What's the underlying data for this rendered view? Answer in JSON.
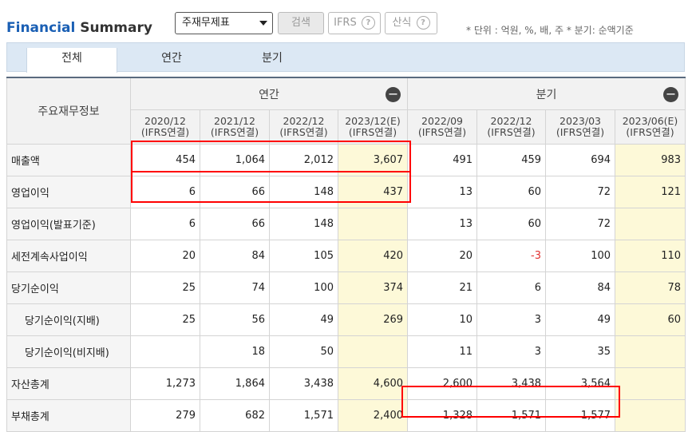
{
  "header": {
    "title_a": "Financial",
    "title_b": "Summary",
    "select_value": "주재무제표",
    "search_label": "검색",
    "ifrs_label": "IFRS",
    "calc_label": "산식",
    "help_glyph": "?",
    "unit_text": "* 단위 : 억원, %, 배, 주    * 분기: 순액기준"
  },
  "tabs": [
    "전체",
    "연간",
    "분기"
  ],
  "table": {
    "main_header": "주요재무정보",
    "annual_label": "연간",
    "quarter_label": "분기",
    "collapse_glyph": "−",
    "columns": [
      {
        "period": "2020/12",
        "basis": "(IFRS연결)"
      },
      {
        "period": "2021/12",
        "basis": "(IFRS연결)"
      },
      {
        "period": "2022/12",
        "basis": "(IFRS연결)"
      },
      {
        "period": "2023/12(E)",
        "basis": "(IFRS연결)"
      },
      {
        "period": "2022/09",
        "basis": "(IFRS연결)"
      },
      {
        "period": "2022/12",
        "basis": "(IFRS연결)"
      },
      {
        "period": "2023/03",
        "basis": "(IFRS연결)"
      },
      {
        "period": "2023/06(E)",
        "basis": "(IFRS연결)"
      }
    ],
    "rows": [
      {
        "label": "매출액",
        "values": [
          "454",
          "1,064",
          "2,012",
          "3,607",
          "491",
          "459",
          "694",
          "983"
        ]
      },
      {
        "label": "영업이익",
        "values": [
          "6",
          "66",
          "148",
          "437",
          "13",
          "60",
          "72",
          "121"
        ]
      },
      {
        "label": "영업이익(발표기준)",
        "values": [
          "6",
          "66",
          "148",
          "",
          "13",
          "60",
          "72",
          ""
        ]
      },
      {
        "label": "세전계속사업이익",
        "values": [
          "20",
          "84",
          "105",
          "420",
          "20",
          "-3",
          "100",
          "110"
        ]
      },
      {
        "label": "당기순이익",
        "values": [
          "25",
          "74",
          "100",
          "374",
          "21",
          "6",
          "84",
          "78"
        ]
      },
      {
        "label": "당기순이익(지배)",
        "values": [
          "25",
          "56",
          "49",
          "269",
          "10",
          "3",
          "49",
          "60"
        ]
      },
      {
        "label": "당기순이익(비지배)",
        "values": [
          "",
          "18",
          "50",
          "",
          "11",
          "3",
          "35",
          ""
        ]
      },
      {
        "label": "자산총계",
        "values": [
          "1,273",
          "1,864",
          "3,438",
          "4,600",
          "2,600",
          "3,438",
          "3,564",
          ""
        ]
      },
      {
        "label": "부채총계",
        "values": [
          "279",
          "682",
          "1,571",
          "2,400",
          "1,328",
          "1,571",
          "1,577",
          ""
        ]
      }
    ]
  }
}
